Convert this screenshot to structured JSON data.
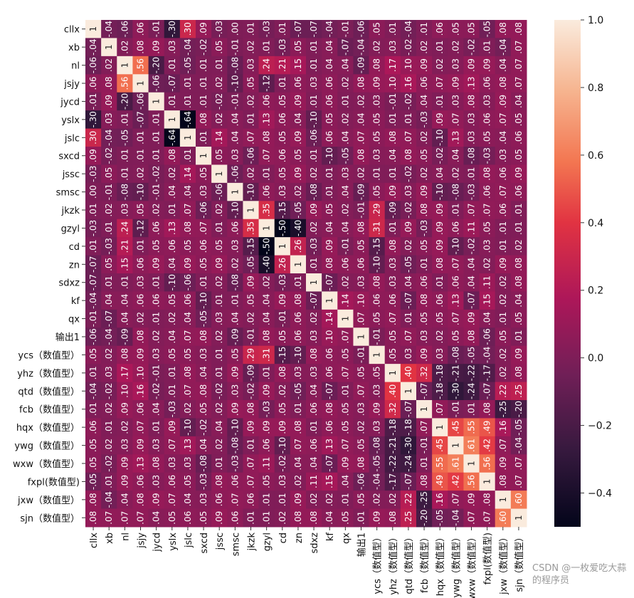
{
  "chart_data": {
    "type": "heatmap",
    "title": "",
    "labels": [
      "cllx",
      "xb",
      "nl",
      "jsjy",
      "jycd",
      "yslx",
      "jslc",
      "sxcd",
      "jssc",
      "smsc",
      "jkzk",
      "gzyl",
      "cd",
      "zn",
      "sdxz",
      "kf",
      "qx",
      "输出1",
      "ycs（数值型）",
      "yhz（数值型）",
      "qtd（数值型）",
      "fcb（数值型）",
      "hqx（数值型）",
      "ywg（数值型）",
      "wxw（数值型）",
      "fxpl(数值型)",
      "jxw（数值型）",
      "sjn（数值型）"
    ],
    "symmetric": true,
    "values": [
      [
        1
      ],
      [
        -0.04,
        1
      ],
      [
        -0.06,
        0.02,
        1
      ],
      [
        0.06,
        0.08,
        0.56,
        1
      ],
      [
        -0.01,
        0.09,
        -0.2,
        -0.06,
        1
      ],
      [
        -0.3,
        0.03,
        0.01,
        -0.07,
        0.01,
        1
      ],
      [
        0.3,
        -0.04,
        -0.05,
        0.01,
        0.01,
        -0.64,
        1
      ],
      [
        0.085,
        -0.02,
        0.006,
        0.009,
        0.01,
        0.08,
        0.01,
        1
      ],
      [
        -0.025,
        0.05,
        0.01,
        0.02,
        -0.02,
        0.02,
        0.14,
        0.05,
        1
      ],
      [
        0.001,
        -0.006,
        -0.08,
        -0.1,
        -0.01,
        0.04,
        0.04,
        0.03,
        -0.06,
        1
      ],
      [
        0.01,
        0.02,
        0.03,
        0.05,
        0.02,
        0.01,
        0.07,
        -0.06,
        0.02,
        -0.1,
        1
      ],
      [
        -0.03,
        0.01,
        0.24,
        -0.12,
        0.06,
        0.13,
        0.08,
        0.07,
        0.01,
        0.06,
        0.35,
        1
      ],
      [
        0.01,
        -0.03,
        0.21,
        0.01,
        0.05,
        0.06,
        0.05,
        0.06,
        0.05,
        0.03,
        -0.15,
        -0.5,
        1
      ],
      [
        -0.07,
        0.05,
        0.15,
        0.06,
        0.09,
        0.04,
        0.09,
        0.05,
        0.09,
        0.02,
        -0.05,
        -0.4,
        0.26,
        1
      ],
      [
        -0.07,
        0.01,
        0.01,
        0.03,
        0.01,
        -0.1,
        -0.06,
        0.01,
        0.02,
        -0.08,
        0.09,
        0.02,
        -0.03,
        0.01,
        1
      ],
      [
        -0.04,
        0.04,
        0.04,
        0.06,
        0.06,
        0.05,
        0.06,
        -0.1,
        0.01,
        0.01,
        0.05,
        0.04,
        0.09,
        0.08,
        -0.07,
        1
      ],
      [
        -0.01,
        -0.07,
        0.04,
        0.02,
        0.01,
        0.02,
        0.04,
        -0.05,
        0.03,
        0.04,
        0.02,
        0.04,
        -0.01,
        0.06,
        0.02,
        0.14,
        1
      ],
      [
        -0.06,
        -0.04,
        -0.09,
        0.08,
        0.02,
        0.04,
        0.07,
        0.08,
        0.02,
        -0.09,
        -0.01,
        0.08,
        0.05,
        0.06,
        0.03,
        0.1,
        0.07,
        1
      ],
      [
        0.05,
        0.02,
        0.08,
        0.09,
        0.03,
        0.05,
        0.05,
        0.03,
        0.01,
        0.05,
        0.29,
        0.31,
        -0.15,
        -0.1,
        0.08,
        0.06,
        0.05,
        -0.01,
        1
      ],
      [
        0.01,
        0.03,
        0.17,
        0.1,
        -0.01,
        0.01,
        0.08,
        0.04,
        0.01,
        0.09,
        -0.09,
        0.01,
        0.08,
        0.03,
        0.03,
        0.06,
        0.07,
        0.05,
        0.05,
        1
      ],
      [
        -0.04,
        -0.02,
        0.1,
        0.16,
        -0.02,
        0.01,
        0.07,
        0.08,
        -0.02,
        0.03,
        -0.02,
        0.09,
        0.02,
        -0.05,
        0.04,
        -0.07,
        0.01,
        0.07,
        0.03,
        0.4,
        1
      ],
      [
        0.01,
        0.02,
        0.09,
        0.06,
        0.04,
        -0.03,
        0.02,
        0.05,
        0.02,
        0.09,
        0.08,
        -0.03,
        0.05,
        0.01,
        0.06,
        0.08,
        0.05,
        0.03,
        0.09,
        0.32,
        -0.07,
        1
      ],
      [
        0.06,
        0.01,
        0.02,
        0.07,
        0.01,
        0.09,
        -0.1,
        -0.02,
        0.04,
        -0.1,
        0.09,
        0.09,
        0.09,
        0.08,
        0.01,
        0.06,
        0.05,
        0.02,
        0.03,
        -0.18,
        -0.18,
        0.07,
        1
      ],
      [
        0.05,
        0.02,
        0.03,
        0.09,
        0.03,
        0.07,
        0.13,
        0.04,
        0.02,
        -0.08,
        0.01,
        0.06,
        -0.1,
        0.07,
        0.06,
        0.13,
        0.07,
        0.05,
        -0.08,
        -0.21,
        -0.3,
        -0.01,
        0.45,
        1
      ],
      [
        0.05,
        -0.02,
        0.09,
        0.13,
        0.08,
        0.03,
        0.03,
        -0.08,
        0.01,
        -0.03,
        0.07,
        0.11,
        -0.02,
        0.04,
        0.04,
        -0.07,
        0.09,
        0.08,
        -0.05,
        -0.22,
        -0.24,
        0.01,
        0.55,
        0.61,
        1
      ],
      [
        -0.05,
        0.01,
        0.09,
        0.06,
        0.03,
        0.06,
        0.05,
        -0.03,
        0.08,
        0.06,
        0.07,
        0.05,
        0.03,
        0.02,
        0.11,
        0.15,
        0.04,
        -0.06,
        -0.04,
        -0.17,
        -0.07,
        0.08,
        0.49,
        0.42,
        0.56,
        1
      ],
      [
        0.08,
        -0.04,
        0.04,
        0.08,
        0.09,
        0.07,
        0.04,
        0.03,
        0.06,
        0.07,
        0.06,
        0.01,
        0.01,
        0.09,
        0.02,
        0.02,
        0.01,
        0.05,
        0.02,
        0.02,
        0.22,
        -0.25,
        0.16,
        0.07,
        0.09,
        0.08,
        1
      ],
      [
        0.08,
        0.07,
        0.07,
        0.07,
        0.04,
        0.05,
        0.06,
        0.05,
        0.09,
        0.06,
        0.01,
        0.01,
        0.02,
        0.08,
        0.08,
        0.04,
        0.05,
        0.01,
        0.09,
        0.08,
        0.25,
        -0.2,
        -0.05,
        -0.04,
        0.07,
        0.07,
        0.6,
        1
      ]
    ],
    "colormap": "rocket",
    "vmin": -0.5,
    "vmax": 1.0,
    "colorbar_ticks": [
      "−0.4",
      "−0.2",
      "0.0",
      "0.2",
      "0.4",
      "0.6",
      "0.8",
      "1.0"
    ],
    "colorbar_tick_values": [
      -0.4,
      -0.2,
      0.0,
      0.2,
      0.4,
      0.6,
      0.8,
      1.0
    ],
    "annotated": true
  },
  "watermark": "CSDN @一枚爱吃大蒜的程序员"
}
